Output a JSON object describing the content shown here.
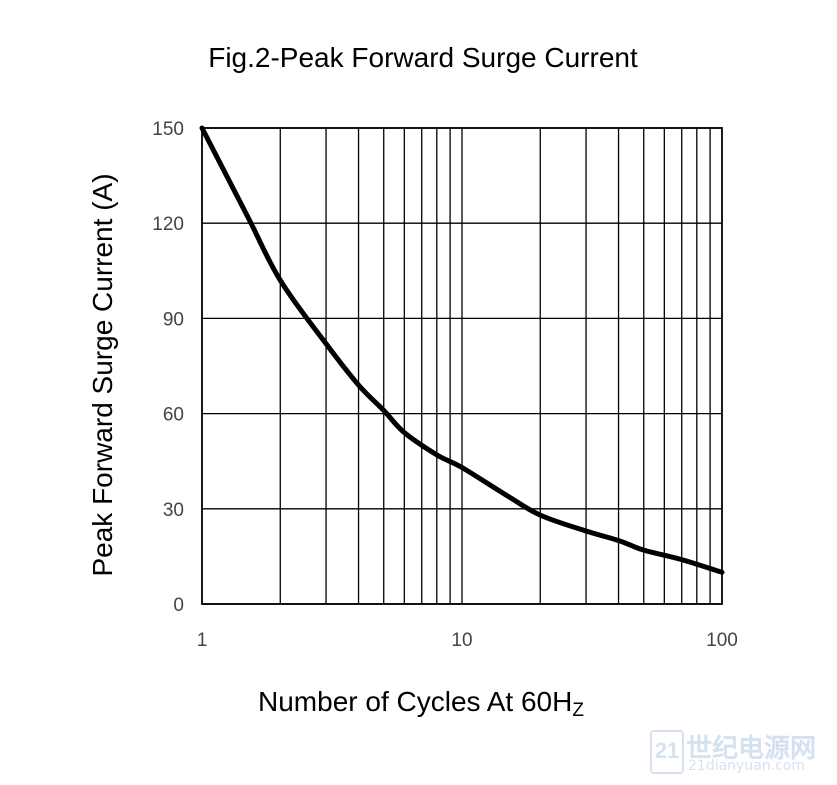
{
  "chart_data": {
    "type": "line",
    "title": "Fig.2-Peak Forward Surge Current",
    "xlabel_main": "Number of Cycles At 60H",
    "xlabel_sub": "Z",
    "ylabel": "Peak Forward Surge Current (A)",
    "xscale": "log",
    "xlim": [
      1,
      100
    ],
    "ylim": [
      0,
      150
    ],
    "xticks": [
      "1",
      "10",
      "100"
    ],
    "yticks": [
      "0",
      "30",
      "60",
      "90",
      "120",
      "150"
    ],
    "grid": true,
    "series": [
      {
        "x": [
          1,
          1.5,
          2,
          3,
          4,
          5,
          6,
          8,
          10,
          15,
          20,
          30,
          40,
          50,
          70,
          100
        ],
        "y": [
          150,
          122,
          102,
          82,
          69,
          61,
          54,
          47,
          43,
          34,
          28,
          23,
          20,
          17,
          14,
          10
        ]
      }
    ]
  },
  "watermark": {
    "mark": "21",
    "site_cn": "世纪电源网",
    "site_url": "21dianyuan.com"
  }
}
